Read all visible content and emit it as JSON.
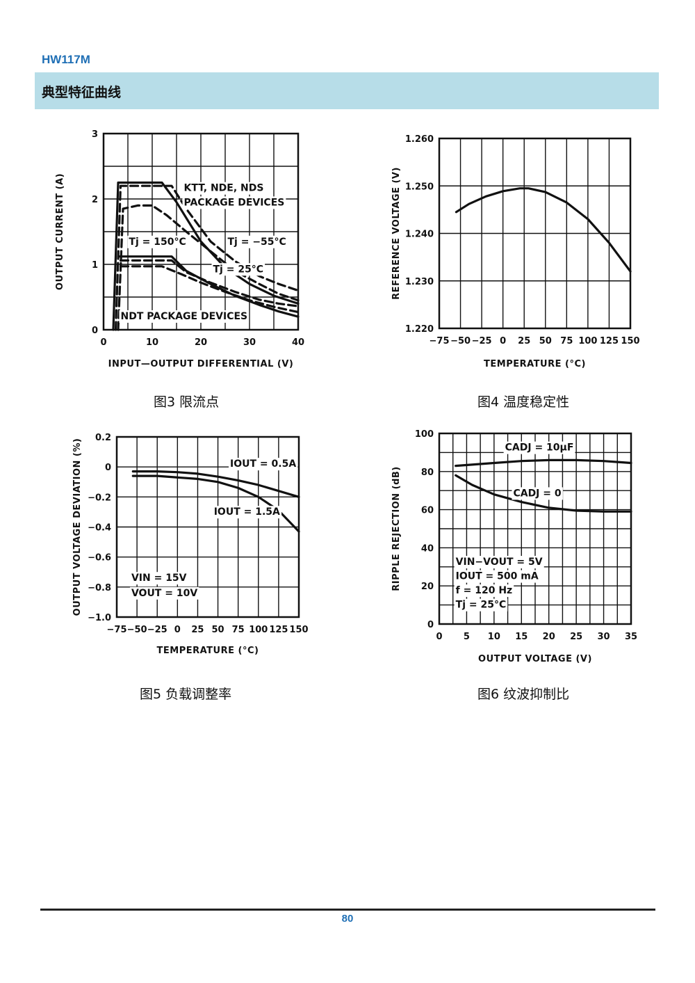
{
  "doc": {
    "title": "HW117M",
    "section": "典型特征曲线",
    "page_number": "80"
  },
  "chart_data": [
    {
      "id": "fig3",
      "caption": "图3  限流点",
      "type": "line",
      "xlabel": "INPUT—OUTPUT DIFFERENTIAL (V)",
      "ylabel": "OUTPUT CURRENT (A)",
      "xlim": [
        0,
        40
      ],
      "ylim": [
        0,
        3
      ],
      "xticks": [
        0,
        10,
        20,
        30,
        40
      ],
      "yticks": [
        0,
        1,
        2,
        3
      ],
      "grid_x_step": 5,
      "grid_y_step": 0.5,
      "annotations": [
        {
          "text": "KTT, NDE, NDS",
          "x": 16.5,
          "y": 2.12
        },
        {
          "text": "PACKAGE DEVICES",
          "x": 16.5,
          "y": 1.9
        },
        {
          "text": "Tj = 150°C",
          "x": 5.2,
          "y": 1.3
        },
        {
          "text": "Tj = −55°C",
          "x": 25.5,
          "y": 1.3
        },
        {
          "text": "Tj = 25°C",
          "x": 22.5,
          "y": 0.88
        },
        {
          "text": "NDT PACKAGE DEVICES",
          "x": 3.5,
          "y": 0.16
        }
      ],
      "series": [
        {
          "group": "KTT, NDE, NDS PACKAGE DEVICES",
          "style": "solid",
          "points": [
            [
              2,
              0
            ],
            [
              3,
              2.25
            ],
            [
              12,
              2.25
            ],
            [
              15,
              1.95
            ],
            [
              20,
              1.35
            ],
            [
              25,
              0.95
            ],
            [
              30,
              0.7
            ],
            [
              35,
              0.52
            ],
            [
              40,
              0.4
            ]
          ]
        },
        {
          "group": "KTT, NDE, NDS PACKAGE DEVICES",
          "style": "dashed",
          "points": [
            [
              2.5,
              0
            ],
            [
              3.5,
              2.2
            ],
            [
              14,
              2.2
            ],
            [
              17,
              1.85
            ],
            [
              22,
              1.35
            ],
            [
              27,
              1.05
            ],
            [
              32,
              0.82
            ],
            [
              36,
              0.7
            ],
            [
              40,
              0.6
            ]
          ]
        },
        {
          "group": "KTT, NDE, NDS PACKAGE DEVICES",
          "style": "dashed",
          "points": [
            [
              3,
              0
            ],
            [
              4,
              1.85
            ],
            [
              7,
              1.9
            ],
            [
              10,
              1.9
            ],
            [
              13,
              1.75
            ],
            [
              17,
              1.5
            ],
            [
              22,
              1.2
            ],
            [
              27,
              0.9
            ],
            [
              32,
              0.7
            ],
            [
              36,
              0.55
            ],
            [
              40,
              0.45
            ]
          ]
        },
        {
          "group": "NDT PACKAGE DEVICES",
          "style": "solid",
          "points": [
            [
              3,
              1.12
            ],
            [
              14,
              1.12
            ],
            [
              17,
              0.9
            ],
            [
              22,
              0.7
            ],
            [
              27,
              0.52
            ],
            [
              32,
              0.38
            ],
            [
              36,
              0.28
            ],
            [
              40,
              0.2
            ]
          ]
        },
        {
          "group": "NDT PACKAGE DEVICES",
          "style": "dashed",
          "points": [
            [
              3.5,
              1.06
            ],
            [
              14,
              1.06
            ],
            [
              17,
              0.88
            ],
            [
              22,
              0.72
            ],
            [
              27,
              0.58
            ],
            [
              32,
              0.46
            ],
            [
              36,
              0.4
            ],
            [
              40,
              0.36
            ]
          ]
        },
        {
          "group": "NDT PACKAGE DEVICES",
          "style": "dashed",
          "points": [
            [
              3.5,
              0.97
            ],
            [
              12,
              0.97
            ],
            [
              16,
              0.85
            ],
            [
              20,
              0.72
            ],
            [
              25,
              0.58
            ],
            [
              30,
              0.45
            ],
            [
              35,
              0.35
            ],
            [
              40,
              0.27
            ]
          ]
        }
      ]
    },
    {
      "id": "fig4",
      "caption": "图4  温度稳定性",
      "type": "line",
      "xlabel": "TEMPERATURE (°C)",
      "ylabel": "REFERENCE VOLTAGE (V)",
      "xlim": [
        -75,
        150
      ],
      "ylim": [
        1.22,
        1.26
      ],
      "xticks": [
        -75,
        -50,
        -25,
        0,
        25,
        50,
        75,
        100,
        125,
        150
      ],
      "ytick_labels": [
        "1.220",
        "1.230",
        "1.240",
        "1.250",
        "1.260"
      ],
      "yticks": [
        1.22,
        1.23,
        1.24,
        1.25,
        1.26
      ],
      "grid_x_step": 25,
      "grid_y_step": 0.01,
      "annotations": [],
      "series": [
        {
          "style": "solid",
          "points": [
            [
              -55,
              1.2445
            ],
            [
              -40,
              1.2462
            ],
            [
              -20,
              1.2478
            ],
            [
              0,
              1.2489
            ],
            [
              20,
              1.2495
            ],
            [
              30,
              1.2495
            ],
            [
              50,
              1.2487
            ],
            [
              75,
              1.2465
            ],
            [
              100,
              1.243
            ],
            [
              125,
              1.238
            ],
            [
              150,
              1.232
            ]
          ]
        }
      ]
    },
    {
      "id": "fig5",
      "caption": "图5  负载调整率",
      "type": "line",
      "xlabel": "TEMPERATURE (°C)",
      "ylabel": "OUTPUT VOLTAGE DEVIATION (%)",
      "xlim": [
        -75,
        150
      ],
      "ylim": [
        -1.0,
        0.2
      ],
      "xticks": [
        -75,
        -50,
        -25,
        0,
        25,
        50,
        75,
        100,
        125,
        150
      ],
      "ytick_labels": [
        "−1.0",
        "−0.8",
        "−0.6",
        "−0.4",
        "−0.2",
        "0",
        "0.2"
      ],
      "yticks": [
        -1.0,
        -0.8,
        -0.6,
        -0.4,
        -0.2,
        0,
        0.2
      ],
      "grid_x_step": 25,
      "grid_y_step": 0.2,
      "annotations": [
        {
          "text": "IOUT = 0.5A",
          "x": 65,
          "y": 0.0
        },
        {
          "text": "IOUT = 1.5A",
          "x": 45,
          "y": -0.32
        },
        {
          "text": "VIN = 15V",
          "x": -57,
          "y": -0.76
        },
        {
          "text": "VOUT = 10V",
          "x": -57,
          "y": -0.86
        }
      ],
      "series": [
        {
          "name": "IOUT = 0.5A",
          "style": "solid",
          "points": [
            [
              -55,
              -0.03
            ],
            [
              -25,
              -0.03
            ],
            [
              0,
              -0.035
            ],
            [
              25,
              -0.045
            ],
            [
              50,
              -0.065
            ],
            [
              75,
              -0.09
            ],
            [
              100,
              -0.12
            ],
            [
              125,
              -0.16
            ],
            [
              150,
              -0.2
            ]
          ]
        },
        {
          "name": "IOUT = 1.5A",
          "style": "solid",
          "points": [
            [
              -55,
              -0.06
            ],
            [
              -25,
              -0.06
            ],
            [
              0,
              -0.07
            ],
            [
              25,
              -0.08
            ],
            [
              50,
              -0.1
            ],
            [
              75,
              -0.14
            ],
            [
              100,
              -0.2
            ],
            [
              125,
              -0.29
            ],
            [
              150,
              -0.43
            ]
          ]
        }
      ]
    },
    {
      "id": "fig6",
      "caption": "图6  纹波抑制比",
      "type": "line",
      "xlabel": "OUTPUT VOLTAGE (V)",
      "ylabel": "RIPPLE REJECTION (dB)",
      "xlim": [
        0,
        35
      ],
      "ylim": [
        0,
        100
      ],
      "xticks": [
        0,
        5,
        10,
        15,
        20,
        25,
        30,
        35
      ],
      "yticks": [
        0,
        20,
        40,
        60,
        80,
        100
      ],
      "grid_x_step": 2.5,
      "grid_y_step": 10,
      "annotations": [
        {
          "text": "CADJ = 10μF",
          "x": 12,
          "y": 91
        },
        {
          "text": "CADJ = 0",
          "x": 13.5,
          "y": 67
        },
        {
          "text": "VIN−VOUT = 5V",
          "x": 3,
          "y": 31
        },
        {
          "text": "IOUT = 500 mA",
          "x": 3,
          "y": 23.5
        },
        {
          "text": "f = 120 Hz",
          "x": 3,
          "y": 16
        },
        {
          "text": "Tj = 25°C",
          "x": 3,
          "y": 8.5
        }
      ],
      "series": [
        {
          "name": "CADJ = 10μF",
          "style": "solid",
          "points": [
            [
              3,
              83
            ],
            [
              10,
              84.5
            ],
            [
              15,
              85.5
            ],
            [
              20,
              86
            ],
            [
              25,
              86
            ],
            [
              30,
              85.5
            ],
            [
              35,
              84.5
            ]
          ]
        },
        {
          "name": "CADJ = 0",
          "style": "solid",
          "points": [
            [
              3,
              78
            ],
            [
              6,
              73
            ],
            [
              10,
              68
            ],
            [
              15,
              64
            ],
            [
              20,
              61
            ],
            [
              25,
              59.5
            ],
            [
              30,
              59
            ],
            [
              35,
              59
            ]
          ]
        }
      ]
    }
  ]
}
